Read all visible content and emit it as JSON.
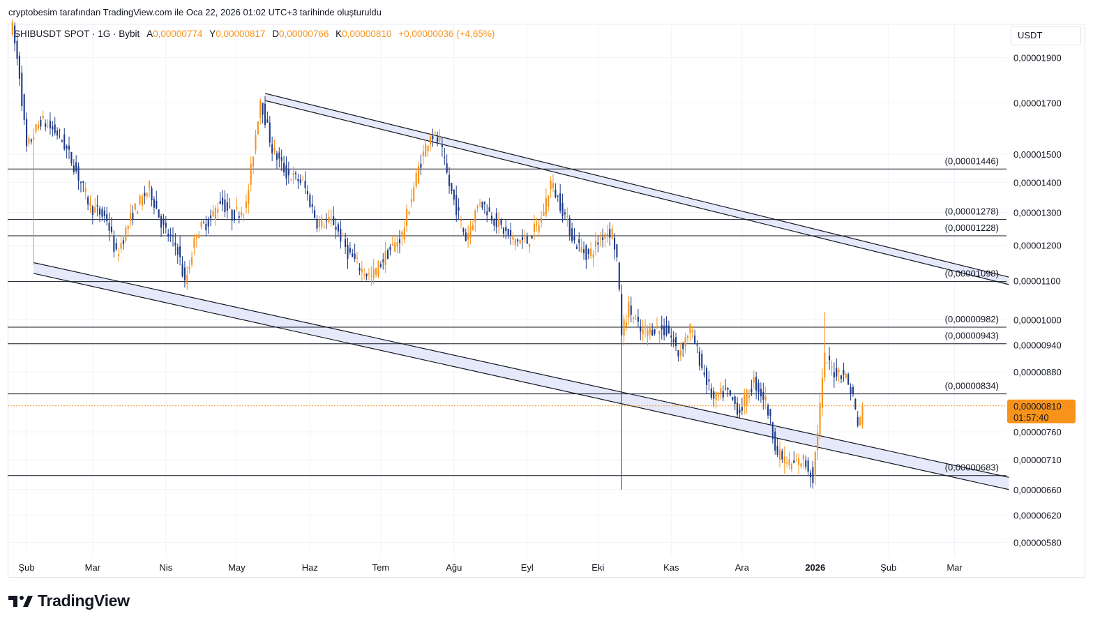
{
  "attribution": "cryptobesim tarafından TradingView.com ile Oca 22, 2026 01:02 UTC+3 tarihinde oluşturuldu",
  "legend": {
    "symbol": "SHIBUSDT SPOT · 1G · Bybit",
    "open_label": "A",
    "open": "0,00000774",
    "high_label": "Y",
    "high": "0,00000817",
    "low_label": "D",
    "low": "0,00000766",
    "close_label": "K",
    "close": "0,00000810",
    "change": "+0,00000036 (+4,65%)"
  },
  "currency": "USDT",
  "price_tag": {
    "value": "0,00000810",
    "countdown": "01:57:40"
  },
  "logo_text": "TradingView",
  "colors": {
    "up": "#f7931a",
    "down": "#1e3a8a",
    "channel_fill": "#dfe3f7",
    "line": "#131722",
    "tag": "#f7931a"
  },
  "chart_data": {
    "type": "candlestick",
    "title": "SHIBUSDT SPOT · 1G · Bybit",
    "ylim": [
      5.6e-06,
      2.06e-05
    ],
    "y_scale": "log",
    "y_ticks": [
      {
        "v": 1.9e-05,
        "label": "0,00001900"
      },
      {
        "v": 1.7e-05,
        "label": "0,00001700"
      },
      {
        "v": 1.5e-05,
        "label": "0,00001500"
      },
      {
        "v": 1.4e-05,
        "label": "0,00001400"
      },
      {
        "v": 1.3e-05,
        "label": "0,00001300"
      },
      {
        "v": 1.2e-05,
        "label": "0,00001200"
      },
      {
        "v": 1.1e-05,
        "label": "0,00001100"
      },
      {
        "v": 1e-05,
        "label": "0,00001000"
      },
      {
        "v": 9.4e-06,
        "label": "0,00000940"
      },
      {
        "v": 8.8e-06,
        "label": "0,00000880"
      },
      {
        "v": 7.6e-06,
        "label": "0,00000760"
      },
      {
        "v": 7.1e-06,
        "label": "0,00000710"
      },
      {
        "v": 6.6e-06,
        "label": "0,00000660"
      },
      {
        "v": 6.2e-06,
        "label": "0,00000620"
      },
      {
        "v": 5.8e-06,
        "label": "0,00000580"
      }
    ],
    "x_ticks": [
      {
        "day": 6,
        "label": "Şub",
        "bold": false
      },
      {
        "day": 34,
        "label": "Mar",
        "bold": false
      },
      {
        "day": 65,
        "label": "Nis",
        "bold": false
      },
      {
        "day": 95,
        "label": "May",
        "bold": false
      },
      {
        "day": 126,
        "label": "Haz",
        "bold": false
      },
      {
        "day": 156,
        "label": "Tem",
        "bold": false
      },
      {
        "day": 187,
        "label": "Ağu",
        "bold": false
      },
      {
        "day": 218,
        "label": "Eyl",
        "bold": false
      },
      {
        "day": 248,
        "label": "Eki",
        "bold": false
      },
      {
        "day": 279,
        "label": "Kas",
        "bold": false
      },
      {
        "day": 309,
        "label": "Ara",
        "bold": false
      },
      {
        "day": 340,
        "label": "2026",
        "bold": true
      },
      {
        "day": 371,
        "label": "Şub",
        "bold": false
      },
      {
        "day": 399,
        "label": "Mar",
        "bold": false
      }
    ],
    "x_range_days": [
      -2,
      421
    ],
    "levels": [
      {
        "v": 1.446e-05,
        "label": "(0,00001446)"
      },
      {
        "v": 1.278e-05,
        "label": "(0,00001278)"
      },
      {
        "v": 1.228e-05,
        "label": "(0,00001228)"
      },
      {
        "v": 1.098e-05,
        "label": "(0,00001098)"
      },
      {
        "v": 9.82e-06,
        "label": "(0,00000982)"
      },
      {
        "v": 9.43e-06,
        "label": "(0,00000943)"
      },
      {
        "v": 8.34e-06,
        "label": "(0,00000834)"
      },
      {
        "v": 6.83e-06,
        "label": "(0,00000683)"
      }
    ],
    "channels": [
      {
        "name": "falling-wedge-upper",
        "a": [
          {
            "day": 107,
            "v": 1.74e-05
          },
          {
            "day": 422,
            "v": 1.11e-05
          }
        ],
        "b": [
          {
            "day": 107,
            "v": 1.71e-05
          },
          {
            "day": 422,
            "v": 1.09e-05
          }
        ]
      },
      {
        "name": "falling-channel-lower",
        "a": [
          {
            "day": 9,
            "v": 1.15e-05
          },
          {
            "day": 422,
            "v": 6.8e-06
          }
        ],
        "b": [
          {
            "day": 9,
            "v": 1.12e-05
          },
          {
            "day": 422,
            "v": 6.6e-06
          }
        ]
      }
    ],
    "current_price": 8.1e-06,
    "anchors": [
      {
        "day": 0,
        "v": 2.04e-05
      },
      {
        "day": 3,
        "v": 1.82e-05
      },
      {
        "day": 6,
        "v": 1.52e-05
      },
      {
        "day": 12,
        "v": 1.63e-05
      },
      {
        "day": 20,
        "v": 1.57e-05
      },
      {
        "day": 26,
        "v": 1.46e-05
      },
      {
        "day": 33,
        "v": 1.32e-05
      },
      {
        "day": 40,
        "v": 1.28e-05
      },
      {
        "day": 44,
        "v": 1.17e-05
      },
      {
        "day": 51,
        "v": 1.3e-05
      },
      {
        "day": 58,
        "v": 1.38e-05
      },
      {
        "day": 64,
        "v": 1.25e-05
      },
      {
        "day": 70,
        "v": 1.19e-05
      },
      {
        "day": 73,
        "v": 1.09e-05
      },
      {
        "day": 78,
        "v": 1.24e-05
      },
      {
        "day": 84,
        "v": 1.28e-05
      },
      {
        "day": 88,
        "v": 1.34e-05
      },
      {
        "day": 93,
        "v": 1.29e-05
      },
      {
        "day": 99,
        "v": 1.32e-05
      },
      {
        "day": 105,
        "v": 1.72e-05
      },
      {
        "day": 110,
        "v": 1.52e-05
      },
      {
        "day": 116,
        "v": 1.43e-05
      },
      {
        "day": 123,
        "v": 1.4e-05
      },
      {
        "day": 129,
        "v": 1.27e-05
      },
      {
        "day": 136,
        "v": 1.27e-05
      },
      {
        "day": 142,
        "v": 1.18e-05
      },
      {
        "day": 148,
        "v": 1.13e-05
      },
      {
        "day": 152,
        "v": 1.11e-05
      },
      {
        "day": 158,
        "v": 1.17e-05
      },
      {
        "day": 165,
        "v": 1.23e-05
      },
      {
        "day": 172,
        "v": 1.45e-05
      },
      {
        "day": 177,
        "v": 1.58e-05
      },
      {
        "day": 181,
        "v": 1.54e-05
      },
      {
        "day": 185,
        "v": 1.39e-05
      },
      {
        "day": 192,
        "v": 1.22e-05
      },
      {
        "day": 198,
        "v": 1.34e-05
      },
      {
        "day": 205,
        "v": 1.27e-05
      },
      {
        "day": 211,
        "v": 1.22e-05
      },
      {
        "day": 218,
        "v": 1.21e-05
      },
      {
        "day": 224,
        "v": 1.28e-05
      },
      {
        "day": 228,
        "v": 1.4e-05
      },
      {
        "day": 233,
        "v": 1.31e-05
      },
      {
        "day": 238,
        "v": 1.21e-05
      },
      {
        "day": 244,
        "v": 1.17e-05
      },
      {
        "day": 251,
        "v": 1.24e-05
      },
      {
        "day": 254,
        "v": 1.24e-05
      },
      {
        "day": 256,
        "v": 1.16e-05
      },
      {
        "day": 258,
        "v": 9.7e-06
      },
      {
        "day": 261,
        "v": 1.03e-05
      },
      {
        "day": 266,
        "v": 9.7e-06
      },
      {
        "day": 272,
        "v": 9.8e-06
      },
      {
        "day": 278,
        "v": 9.7e-06
      },
      {
        "day": 282,
        "v": 9.2e-06
      },
      {
        "day": 287,
        "v": 9.8e-06
      },
      {
        "day": 292,
        "v": 8.9e-06
      },
      {
        "day": 297,
        "v": 8.2e-06
      },
      {
        "day": 302,
        "v": 8.4e-06
      },
      {
        "day": 308,
        "v": 8e-06
      },
      {
        "day": 314,
        "v": 8.6e-06
      },
      {
        "day": 319,
        "v": 8.2e-06
      },
      {
        "day": 324,
        "v": 7.2e-06
      },
      {
        "day": 330,
        "v": 7e-06
      },
      {
        "day": 335,
        "v": 7.1e-06
      },
      {
        "day": 339,
        "v": 6.8e-06
      },
      {
        "day": 342,
        "v": 8.1e-06
      },
      {
        "day": 344,
        "v": 9.1e-06
      },
      {
        "day": 348,
        "v": 8.8e-06
      },
      {
        "day": 352,
        "v": 8.8e-06
      },
      {
        "day": 356,
        "v": 8.3e-06
      },
      {
        "day": 358,
        "v": 7.7e-06
      },
      {
        "day": 360,
        "v": 8.1e-06
      }
    ]
  }
}
